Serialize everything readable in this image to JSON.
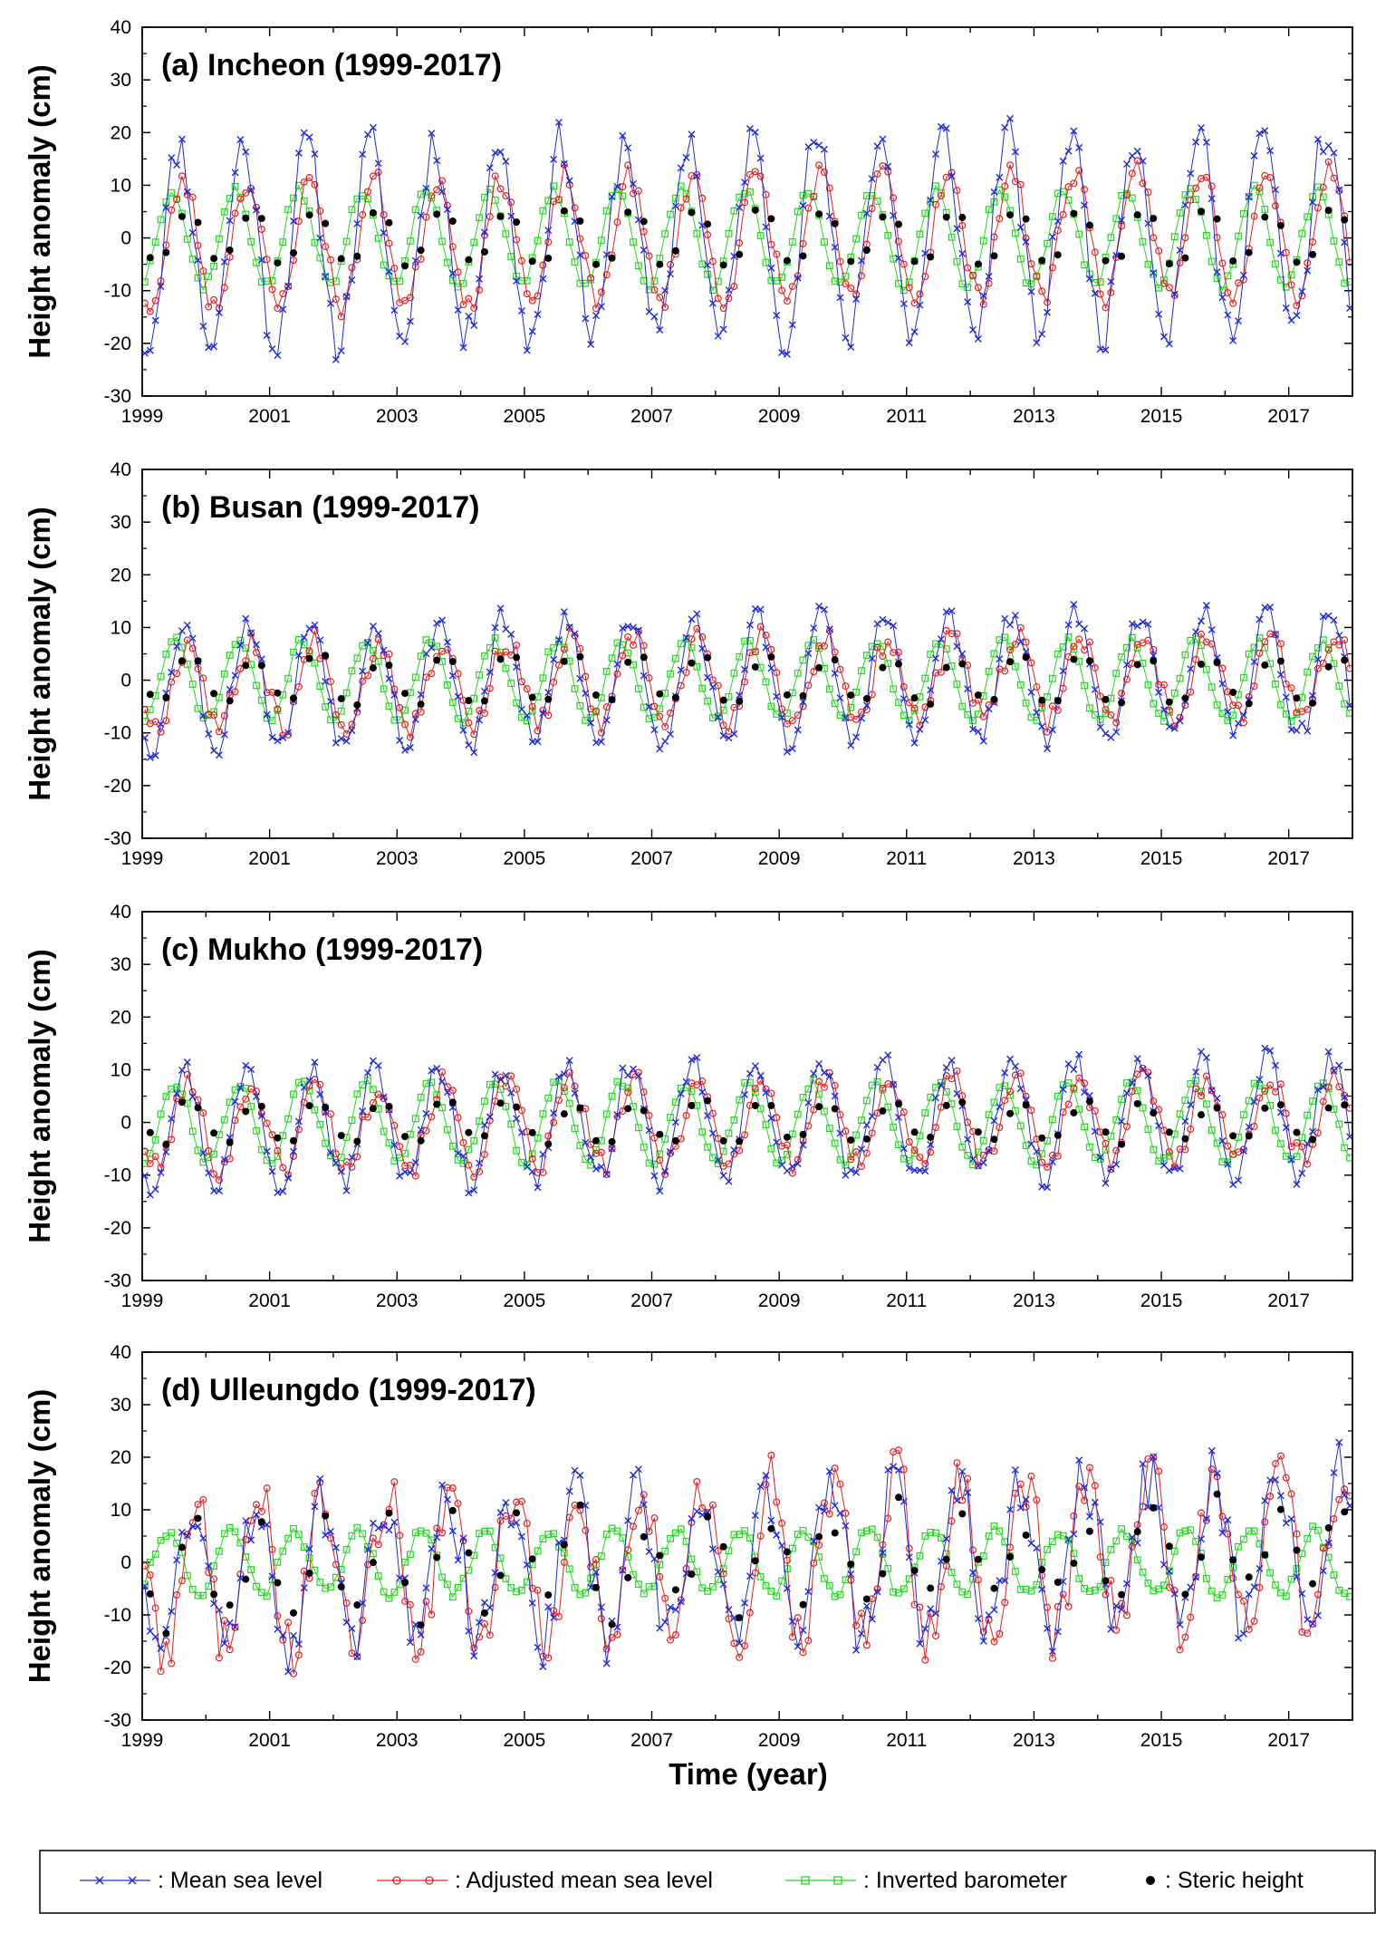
{
  "figure": {
    "xlabel": "Time (year)",
    "ylabel": "Height anomaly (cm)"
  },
  "colors": {
    "msl": "#1f2bd6",
    "amsl": "#e81e1e",
    "ib": "#22d81e",
    "steric": "#000000"
  },
  "legend": [
    {
      "key": "msl",
      "label": ": Mean sea level"
    },
    {
      "key": "amsl",
      "label": ": Adjusted mean sea level"
    },
    {
      "key": "ib",
      "label": ": Inverted barometer"
    },
    {
      "key": "steric",
      "label": ": Steric height"
    }
  ],
  "chart_data": [
    {
      "type": "line",
      "title": "(a) Incheon (1999-2017)",
      "xlabel": "",
      "ylabel": "Height anomaly (cm)",
      "xlim": [
        1999,
        2018
      ],
      "ylim": [
        -30,
        40
      ],
      "xticks": [
        1999,
        2001,
        2003,
        2005,
        2007,
        2009,
        2011,
        2013,
        2015,
        2017
      ],
      "yticks": [
        -30,
        -20,
        -10,
        0,
        10,
        20,
        30,
        40
      ],
      "series_spec": {
        "msl": {
          "amp": 19,
          "phase": 0.58,
          "trend": 0.15,
          "noise": 4.0,
          "seed": 11
        },
        "amsl": {
          "amp": 12,
          "phase": 0.64,
          "trend": 0.15,
          "noise": 2.5,
          "seed": 23
        },
        "ib": {
          "amp": 9,
          "phase": 0.46,
          "trend": 0.0,
          "noise": 1.0,
          "seed": 37
        },
        "steric": {
          "amp": 5.5,
          "phase": 0.72,
          "trend": 0.0,
          "noise": 0.8,
          "seed": 41
        }
      }
    },
    {
      "type": "line",
      "title": "(b) Busan (1999-2017)",
      "xlabel": "",
      "ylabel": "Height anomaly (cm)",
      "xlim": [
        1999,
        2018
      ],
      "ylim": [
        -30,
        40
      ],
      "xticks": [
        1999,
        2001,
        2003,
        2005,
        2007,
        2009,
        2011,
        2013,
        2015,
        2017
      ],
      "yticks": [
        -30,
        -20,
        -10,
        0,
        10,
        20,
        30,
        40
      ],
      "series_spec": {
        "msl": {
          "amp": 12,
          "phase": 0.66,
          "trend": 0.1,
          "noise": 2.5,
          "seed": 53
        },
        "amsl": {
          "amp": 8,
          "phase": 0.72,
          "trend": 0.1,
          "noise": 2.5,
          "seed": 67
        },
        "ib": {
          "amp": 7.5,
          "phase": 0.52,
          "trend": 0.0,
          "noise": 0.8,
          "seed": 71
        },
        "steric": {
          "amp": 5,
          "phase": 0.76,
          "trend": 0.0,
          "noise": 1.0,
          "seed": 83
        }
      }
    },
    {
      "type": "line",
      "title": "(c) Mukho (1999-2017)",
      "xlabel": "",
      "ylabel": "Height anomaly (cm)",
      "xlim": [
        1999,
        2018
      ],
      "ylim": [
        -30,
        40
      ],
      "xticks": [
        1999,
        2001,
        2003,
        2005,
        2007,
        2009,
        2011,
        2013,
        2015,
        2017
      ],
      "yticks": [
        -30,
        -20,
        -10,
        0,
        10,
        20,
        30,
        40
      ],
      "series_spec": {
        "msl": {
          "amp": 11,
          "phase": 0.66,
          "trend": 0.1,
          "noise": 2.5,
          "seed": 97
        },
        "amsl": {
          "amp": 8,
          "phase": 0.72,
          "trend": 0.1,
          "noise": 2.5,
          "seed": 101
        },
        "ib": {
          "amp": 7.5,
          "phase": 0.52,
          "trend": 0.0,
          "noise": 0.8,
          "seed": 113
        },
        "steric": {
          "amp": 4,
          "phase": 0.76,
          "trend": 0.0,
          "noise": 1.2,
          "seed": 127
        }
      }
    },
    {
      "type": "line",
      "title": "(d) Ulleungdo (1999-2017)",
      "xlabel": "Time (year)",
      "ylabel": "Height anomaly (cm)",
      "xlim": [
        1999,
        2018
      ],
      "ylim": [
        -30,
        40
      ],
      "xticks": [
        1999,
        2001,
        2003,
        2005,
        2007,
        2009,
        2011,
        2013,
        2015,
        2017
      ],
      "yticks": [
        -30,
        -20,
        -10,
        0,
        10,
        20,
        30,
        40
      ],
      "series_spec": {
        "msl": {
          "amp": 14,
          "phase": 0.8,
          "trend": 0.3,
          "noise": 6.0,
          "seed": 131
        },
        "amsl": {
          "amp": 15,
          "phase": 0.84,
          "trend": 0.3,
          "noise": 6.0,
          "seed": 149
        },
        "ib": {
          "amp": 6,
          "phase": 0.4,
          "trend": 0.0,
          "noise": 1.0,
          "seed": 151
        },
        "steric": {
          "amp": 8,
          "phase": 0.86,
          "trend": 0.2,
          "noise": 4.0,
          "seed": 163
        }
      }
    }
  ]
}
